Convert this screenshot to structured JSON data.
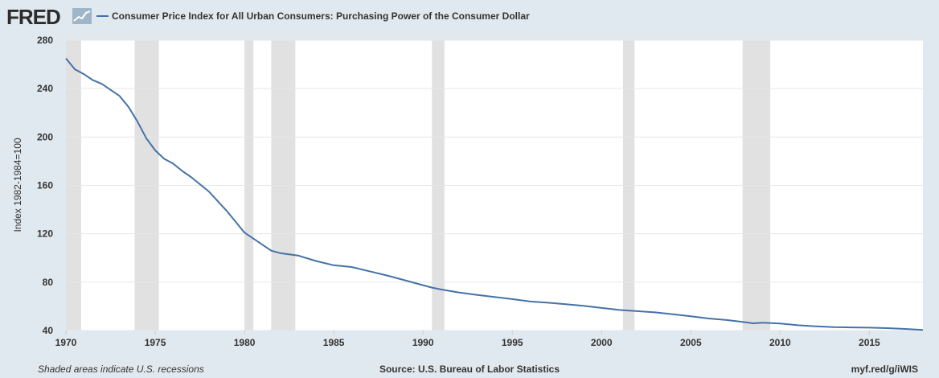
{
  "logo": {
    "text": "FRED",
    "icon": "chart-line-icon"
  },
  "colors": {
    "background": "#e1e9f0",
    "plot_background": "#ffffff",
    "series_line": "#4572a7",
    "recession_shade": "#e1e1e1",
    "grid": "#e6e6e6",
    "text": "#333333"
  },
  "chart_data": {
    "type": "line",
    "title": "Consumer Price Index for All Urban Consumers: Purchasing Power of the Consumer Dollar",
    "legend": "Consumer Price Index for All Urban Consumers: Purchasing Power of the Consumer Dollar",
    "legend_position": "top-left",
    "xlabel": "",
    "ylabel": "Index 1982-1984=100",
    "xlim": [
      1970,
      2018
    ],
    "ylim": [
      40,
      280
    ],
    "x_ticks": [
      "1970",
      "1975",
      "1980",
      "1985",
      "1990",
      "1995",
      "2000",
      "2005",
      "2010",
      "2015"
    ],
    "y_ticks": [
      "40",
      "80",
      "120",
      "160",
      "200",
      "240",
      "280"
    ],
    "grid": true,
    "recessions": [
      [
        1970.0,
        1970.85
      ],
      [
        1973.85,
        1975.2
      ],
      [
        1980.0,
        1980.5
      ],
      [
        1981.5,
        1982.85
      ],
      [
        1990.5,
        1991.2
      ],
      [
        2001.2,
        2001.85
      ],
      [
        2007.9,
        2009.45
      ]
    ],
    "series": [
      {
        "name": "Consumer Price Index for All Urban Consumers: Purchasing Power of the Consumer Dollar",
        "x": [
          1970.0,
          1970.5,
          1971.0,
          1971.5,
          1972.0,
          1972.5,
          1973.0,
          1973.5,
          1974.0,
          1974.5,
          1975.0,
          1975.5,
          1976.0,
          1976.5,
          1977.0,
          1977.5,
          1978.0,
          1978.5,
          1979.0,
          1979.5,
          1980.0,
          1980.5,
          1981.0,
          1981.5,
          1982.0,
          1982.5,
          1983.0,
          1984.0,
          1985.0,
          1986.0,
          1987.0,
          1988.0,
          1989.0,
          1990.0,
          1990.5,
          1991.0,
          1992.0,
          1993.0,
          1994.0,
          1995.0,
          1996.0,
          1997.0,
          1998.0,
          1999.0,
          2000.0,
          2001.0,
          2002.0,
          2003.0,
          2004.0,
          2005.0,
          2006.0,
          2007.0,
          2008.0,
          2008.5,
          2009.0,
          2010.0,
          2011.0,
          2012.0,
          2013.0,
          2014.0,
          2015.0,
          2016.0,
          2017.0,
          2018.0
        ],
        "y": [
          265,
          256,
          252,
          247,
          244,
          239,
          234,
          225,
          213,
          199,
          189,
          182,
          178,
          172,
          167,
          161,
          155,
          147,
          139,
          130,
          121,
          116,
          111,
          106,
          104,
          103,
          102,
          97.5,
          94,
          92.5,
          89,
          85.5,
          81.5,
          77.5,
          75.5,
          74,
          71.5,
          69.5,
          67.8,
          66,
          64,
          63,
          61.8,
          60.5,
          58.7,
          57,
          56,
          55,
          53.5,
          51.8,
          50,
          48.7,
          47,
          46,
          46.5,
          45.8,
          44.4,
          43.5,
          42.8,
          42.6,
          42.4,
          42,
          41.3,
          40.5
        ]
      }
    ]
  },
  "footer": {
    "left": "Shaded areas indicate U.S. recessions",
    "center": "Source: U.S. Bureau of Labor Statistics",
    "right": "myf.red/g/iWIS"
  }
}
